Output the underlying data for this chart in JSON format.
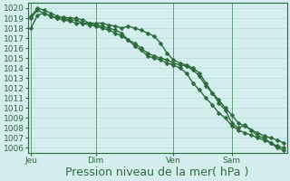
{
  "xlabel": "Pression niveau de la mer( hPa )",
  "background_color": "#d4eeee",
  "grid_color": "#b8ddd8",
  "line_color": "#2d6b3c",
  "ylim": [
    1005.5,
    1020.5
  ],
  "yticks": [
    1006,
    1007,
    1008,
    1009,
    1010,
    1011,
    1012,
    1013,
    1014,
    1015,
    1016,
    1017,
    1018,
    1019,
    1020
  ],
  "xtick_labels": [
    "Jeu",
    "Dim",
    "Ven",
    "Sam"
  ],
  "xlabel_fontsize": 9,
  "tick_fontsize": 6.5,
  "line_width": 1.0,
  "marker_size": 2.5,
  "series0": [
    1018.0,
    1019.3,
    1019.5,
    1019.2,
    1019.0,
    1019.1,
    1019.0,
    1019.0,
    1018.8,
    1018.5,
    1018.5,
    1018.5,
    1018.3,
    1018.2,
    1018.0,
    1018.2,
    1018.0,
    1017.8,
    1017.5,
    1017.2,
    1016.5,
    1015.5,
    1014.8,
    1014.5,
    1014.3,
    1014.0,
    1013.5,
    1012.5,
    1011.5,
    1010.8,
    1010.0,
    1009.3,
    1008.5,
    1008.2,
    1007.8,
    1007.2,
    1007.0,
    1006.5,
    1006.0,
    1005.8
  ],
  "series1": [
    1019.0,
    1019.8,
    1019.5,
    1019.2,
    1019.0,
    1018.8,
    1018.7,
    1018.5,
    1018.5,
    1018.3,
    1018.2,
    1018.0,
    1017.8,
    1017.5,
    1017.2,
    1016.8,
    1016.5,
    1016.0,
    1015.5,
    1015.2,
    1015.0,
    1014.8,
    1014.5,
    1014.3,
    1014.2,
    1013.8,
    1013.2,
    1012.2,
    1011.5,
    1010.5,
    1009.8,
    1008.5,
    1008.0,
    1008.3,
    1007.8,
    1007.5,
    1007.2,
    1007.0,
    1006.8,
    1006.5
  ],
  "series2": [
    1019.2,
    1020.0,
    1019.8,
    1019.5,
    1019.2,
    1019.0,
    1018.8,
    1018.8,
    1018.5,
    1018.5,
    1018.3,
    1018.2,
    1018.0,
    1017.8,
    1017.5,
    1016.8,
    1016.2,
    1015.8,
    1015.2,
    1015.0,
    1014.8,
    1014.5,
    1014.3,
    1014.0,
    1013.5,
    1012.5,
    1011.8,
    1011.0,
    1010.3,
    1009.5,
    1009.0,
    1008.2,
    1007.8,
    1007.5,
    1007.3,
    1007.0,
    1006.8,
    1006.5,
    1006.2,
    1006.0
  ],
  "xtick_x": [
    0,
    10,
    22,
    31
  ]
}
